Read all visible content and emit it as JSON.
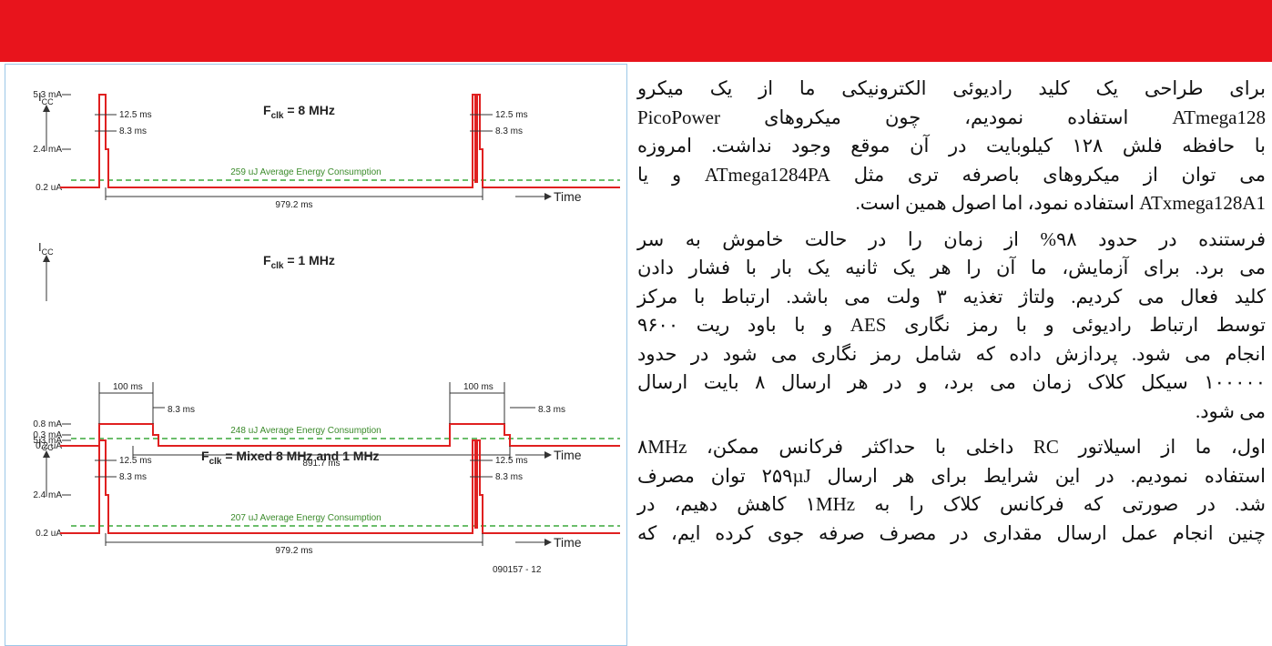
{
  "figure": {
    "panels": [
      {
        "current_symbol": "I",
        "current_subscript": "CC",
        "clock_symbol": "F",
        "clock_subscript": "clk",
        "clock_value": " = 8 MHz",
        "current_levels": [
          "5.3 mA",
          "2.4 mA",
          "0.2 uA"
        ],
        "pulse_labels": [
          "12.5 ms",
          "8.3 ms",
          "12.5 ms",
          "8.3 ms"
        ],
        "energy": "259 uJ Average Energy Consumption",
        "period": "979.2 ms",
        "time_label": "Time"
      },
      {
        "current_symbol": "I",
        "current_subscript": "CC",
        "clock_symbol": "F",
        "clock_subscript": "clk",
        "clock_value": " = 1 MHz",
        "current_levels": [
          "0.8 mA",
          "0.3 mA",
          "0.2 uA"
        ],
        "pulse_labels": [
          "100 ms",
          "8.3 ms",
          "100 ms",
          "8.3 ms"
        ],
        "energy": "248 uJ Average Energy Consumption",
        "period": "891.7 ms",
        "time_label": "Time"
      },
      {
        "current_symbol": "I",
        "current_subscript": "CC",
        "clock_symbol": "F",
        "clock_subscript": "clk",
        "clock_value": " = Mixed 8 MHz and 1 MHz",
        "current_levels": [
          "5.3 mA",
          "2.4 mA",
          "0.2 uA"
        ],
        "pulse_labels": [
          "12.5 ms",
          "8.3 ms",
          "12.5 ms",
          "8.3 ms"
        ],
        "energy": "207 uJ Average Energy Consumption",
        "period": "979.2 ms",
        "time_label": "Time",
        "figure_id": "090157 - 12"
      }
    ]
  },
  "article": {
    "paragraphs": [
      [
        "برای طراحی یک کلید رادیوئی الکترونیکی ما از یک میکرو",
        "ATmega128 استفاده نمودیم، چون میکروهای PicoPower",
        "با حافظه فلش ۱۲۸ کیلوبایت در آن موقع وجود نداشت. امروزه",
        "می توان از میکروهای باصرفه تری مثل ATmega1284PA و یا",
        "ATxmega128A1 استفاده نمود، اما اصول همین است."
      ],
      [
        "فرستنده در حدود ۹۸% از زمان را در حالت خاموش به سر",
        "می برد. برای آزمایش، ما آن را هر یک ثانیه یک بار با فشار دادن",
        "کلید فعال می کردیم. ولتاژ تغذیه ۳ ولت می باشد. ارتباط با مرکز",
        "توسط ارتباط رادیوئی و با رمز نگاری AES و با باود ریت ۹۶۰۰",
        "انجام می شود. پردازش داده که شامل رمز نگاری می شود در حدود",
        "۱۰۰۰۰۰ سیکل کلاک زمان می برد، و در هر ارسال ۸ بایت ارسال",
        "می شود."
      ],
      [
        "اول، ما از اسیلاتور RC داخلی با حداکثر فرکانس ممکن، ۸MHz",
        "استفاده نمودیم. در این شرایط برای هر ارسال ۲۵۹µJ توان مصرف",
        "شد. در صورتی که فرکانس کلاک را به ۱MHz کاهش دهیم، در",
        "چنین انجام عمل ارسال مقداری در مصرف صرفه جوی کرده ایم، که"
      ]
    ]
  }
}
